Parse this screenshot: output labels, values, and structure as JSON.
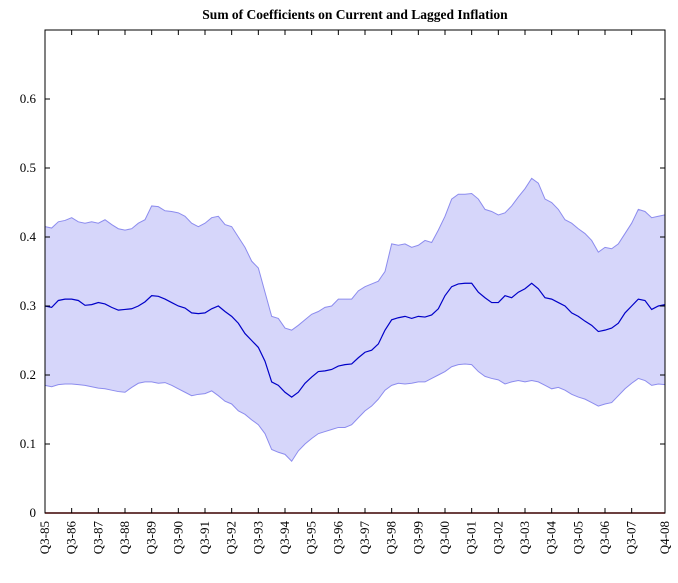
{
  "chart_data": {
    "type": "line",
    "title": "Sum of Coefficients on Current and Lagged Inflation",
    "categories": [
      "Q3-85",
      null,
      null,
      null,
      "Q3-86",
      null,
      null,
      null,
      "Q3-87",
      null,
      null,
      null,
      "Q3-88",
      null,
      null,
      null,
      "Q3-89",
      null,
      null,
      null,
      "Q3-90",
      null,
      null,
      null,
      "Q3-91",
      null,
      null,
      null,
      "Q3-92",
      null,
      null,
      null,
      "Q3-93",
      null,
      null,
      null,
      "Q3-94",
      null,
      null,
      null,
      "Q3-95",
      null,
      null,
      null,
      "Q3-96",
      null,
      null,
      null,
      "Q3-97",
      null,
      null,
      null,
      "Q3-98",
      null,
      null,
      null,
      "Q3-99",
      null,
      null,
      null,
      "Q3-00",
      null,
      null,
      null,
      "Q3-01",
      null,
      null,
      null,
      "Q3-02",
      null,
      null,
      null,
      "Q3-03",
      null,
      null,
      null,
      "Q3-04",
      null,
      null,
      null,
      "Q3-05",
      null,
      null,
      null,
      "Q3-06",
      null,
      null,
      null,
      "Q3-07",
      null,
      null,
      null,
      null,
      "Q4-08"
    ],
    "series": [
      {
        "color": "#0000c8",
        "values": [
          0.3,
          0.298,
          0.308,
          0.31,
          0.31,
          0.308,
          0.301,
          0.302,
          0.305,
          0.303,
          0.298,
          0.294,
          0.295,
          0.296,
          0.3,
          0.306,
          0.315,
          0.314,
          0.31,
          0.305,
          0.3,
          0.297,
          0.29,
          0.289,
          0.29,
          0.296,
          0.3,
          0.292,
          0.285,
          0.275,
          0.26,
          0.25,
          0.24,
          0.22,
          0.19,
          0.185,
          0.175,
          0.168,
          0.175,
          0.188,
          0.197,
          0.205,
          0.206,
          0.208,
          0.213,
          0.215,
          0.216,
          0.225,
          0.233,
          0.236,
          0.245,
          0.265,
          0.28,
          0.283,
          0.285,
          0.282,
          0.285,
          0.284,
          0.287,
          0.296,
          0.315,
          0.328,
          0.332,
          0.333,
          0.333,
          0.32,
          0.312,
          0.305,
          0.305,
          0.315,
          0.312,
          0.32,
          0.325,
          0.333,
          0.325,
          0.312,
          0.31,
          0.305,
          0.3,
          0.29,
          0.285,
          0.278,
          0.272,
          0.263,
          0.265,
          0.268,
          0.275,
          0.29,
          0.3,
          0.31,
          0.308,
          0.295,
          0.3,
          0.302
        ]
      }
    ],
    "band": {
      "color": "#d6d6fa",
      "edge_color": "#8c8cee",
      "upper": [
        0.415,
        0.413,
        0.422,
        0.424,
        0.428,
        0.422,
        0.42,
        0.422,
        0.42,
        0.425,
        0.418,
        0.412,
        0.41,
        0.412,
        0.42,
        0.425,
        0.445,
        0.444,
        0.438,
        0.437,
        0.435,
        0.43,
        0.42,
        0.415,
        0.42,
        0.428,
        0.43,
        0.418,
        0.415,
        0.4,
        0.385,
        0.365,
        0.355,
        0.32,
        0.285,
        0.282,
        0.268,
        0.265,
        0.272,
        0.28,
        0.288,
        0.292,
        0.298,
        0.3,
        0.31,
        0.31,
        0.31,
        0.322,
        0.328,
        0.332,
        0.336,
        0.35,
        0.39,
        0.388,
        0.39,
        0.385,
        0.388,
        0.395,
        0.392,
        0.41,
        0.43,
        0.455,
        0.462,
        0.462,
        0.463,
        0.455,
        0.44,
        0.437,
        0.432,
        0.435,
        0.445,
        0.458,
        0.47,
        0.485,
        0.478,
        0.455,
        0.45,
        0.44,
        0.425,
        0.42,
        0.412,
        0.405,
        0.395,
        0.378,
        0.385,
        0.383,
        0.39,
        0.405,
        0.42,
        0.44,
        0.437,
        0.428,
        0.43,
        0.432
      ],
      "lower": [
        0.185,
        0.183,
        0.186,
        0.187,
        0.187,
        0.186,
        0.185,
        0.183,
        0.181,
        0.18,
        0.178,
        0.176,
        0.175,
        0.182,
        0.188,
        0.19,
        0.19,
        0.188,
        0.189,
        0.185,
        0.18,
        0.175,
        0.17,
        0.172,
        0.173,
        0.177,
        0.17,
        0.162,
        0.158,
        0.148,
        0.143,
        0.135,
        0.128,
        0.115,
        0.092,
        0.088,
        0.085,
        0.075,
        0.09,
        0.1,
        0.108,
        0.115,
        0.118,
        0.121,
        0.124,
        0.124,
        0.128,
        0.138,
        0.148,
        0.155,
        0.165,
        0.178,
        0.185,
        0.188,
        0.187,
        0.188,
        0.19,
        0.19,
        0.195,
        0.2,
        0.205,
        0.212,
        0.215,
        0.216,
        0.215,
        0.205,
        0.198,
        0.195,
        0.193,
        0.187,
        0.19,
        0.192,
        0.19,
        0.192,
        0.19,
        0.185,
        0.18,
        0.182,
        0.178,
        0.172,
        0.168,
        0.165,
        0.16,
        0.155,
        0.158,
        0.16,
        0.17,
        0.18,
        0.188,
        0.195,
        0.192,
        0.185,
        0.187,
        0.186
      ]
    },
    "zero_line_color": "#b00000",
    "ylim": [
      0,
      0.7
    ],
    "yticks": [
      0,
      0.1,
      0.2,
      0.3,
      0.4,
      0.5,
      0.6
    ]
  }
}
